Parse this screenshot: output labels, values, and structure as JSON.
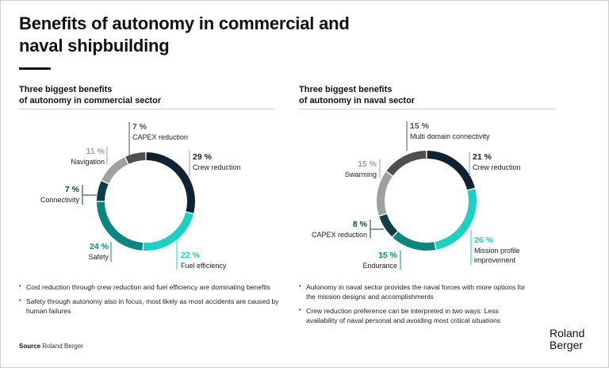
{
  "title_line1": "Benefits of autonomy in commercial and",
  "title_line2": "naval shipbuilding",
  "source_label": "Source",
  "source_value": "Roland Berger",
  "logo_line1": "Roland",
  "logo_line2": "Berger",
  "colors": {
    "navy": "#0f2233",
    "turquoise": "#1cd1c3",
    "teal": "#0a8580",
    "dark_teal": "#0e3f48",
    "light_gray": "#a0a0a0",
    "dark_gray": "#4f4f4f"
  },
  "commercial": {
    "subtitle_line1": "Three biggest benefits",
    "subtitle_line2": "of autonomy in commercial sector",
    "bullets": [
      "Cost reduction through crew reduction and fuel efficiency are dominating benefits",
      "Safety through autonomy also in focus, most likely as most accidents are caused by human failures"
    ]
  },
  "naval": {
    "subtitle_line1": "Three biggest benefits",
    "subtitle_line2": "of autonomy in naval sector",
    "bullets": [
      "Autonomy in naval sector provides the naval forces with more options for the mission designs and accomplishments",
      "Crew reduction preference can be interpreted in two ways: Less availability of naval personal and avoiding most critical situations"
    ]
  },
  "chart_data": [
    {
      "type": "pie",
      "variant": "donut",
      "title": "Three biggest benefits of autonomy in commercial sector",
      "unit": "%",
      "start": "top, clockwise",
      "slices": [
        {
          "label": "Crew reduction",
          "value": 29,
          "pct_text": "29 %",
          "color": "#0f2233"
        },
        {
          "label": "Fuel efficiency",
          "value": 22,
          "pct_text": "22 %",
          "color": "#1cd1c3"
        },
        {
          "label": "Safety",
          "value": 24,
          "pct_text": "24 %",
          "color": "#0a8580"
        },
        {
          "label": "Connectivity",
          "value": 7,
          "pct_text": "7 %",
          "color": "#0e3f48"
        },
        {
          "label": "Navigation",
          "value": 11,
          "pct_text": "11 %",
          "color": "#a0a0a0"
        },
        {
          "label": "CAPEX reduction",
          "value": 7,
          "pct_text": "7 %",
          "color": "#4f4f4f"
        }
      ]
    },
    {
      "type": "pie",
      "variant": "donut",
      "title": "Three biggest benefits of autonomy in naval sector",
      "unit": "%",
      "start": "top, clockwise",
      "slices": [
        {
          "label": "Crew reduction",
          "value": 21,
          "pct_text": "21 %",
          "color": "#0f2233"
        },
        {
          "label": "Mission profile improvement",
          "value": 26,
          "pct_text": "26 %",
          "color": "#1cd1c3"
        },
        {
          "label": "Endurance",
          "value": 15,
          "pct_text": "15 %",
          "color": "#0a8580"
        },
        {
          "label": "CAPEX reduction",
          "value": 8,
          "pct_text": "8 %",
          "color": "#0e3f48"
        },
        {
          "label": "Swarming",
          "value": 15,
          "pct_text": "15 %",
          "color": "#a0a0a0"
        },
        {
          "label": "Multi domain connectivity",
          "value": 15,
          "pct_text": "15 %",
          "color": "#4f4f4f"
        }
      ]
    }
  ]
}
